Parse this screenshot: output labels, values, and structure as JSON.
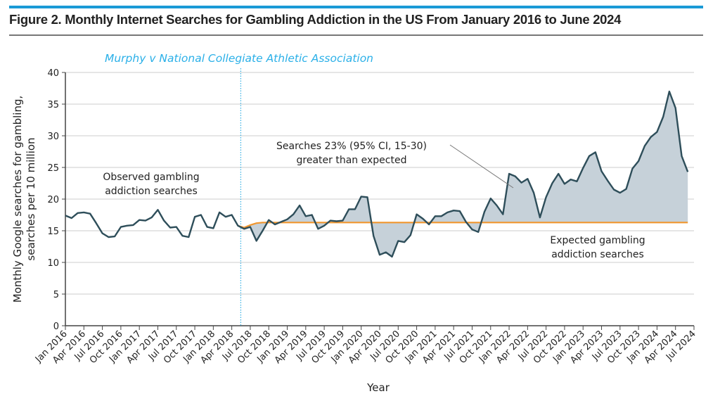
{
  "figure": {
    "title": "Figure 2. Monthly Internet Searches for Gambling Addiction in the US From January 2016 to June 2024"
  },
  "colors": {
    "accent_bar": "#1a9ad6",
    "observed_line": "#2e4e5a",
    "expected_line": "#f0962e",
    "fill": "#c6d1d9",
    "event_line": "#3fb4e6"
  },
  "chart_data": {
    "type": "line",
    "title": "Figure 2. Monthly Internet Searches for Gambling Addiction in the US From January 2016 to June 2024",
    "xlabel": "Year",
    "ylabel": [
      "Monthly Google searches for gambling,",
      "searches per 10 million"
    ],
    "ylim": [
      0,
      40
    ],
    "yticks": [
      "0",
      "5",
      "10",
      "15",
      "20",
      "25",
      "30",
      "35",
      "40"
    ],
    "grid": "horizontal",
    "xticks": [
      "Jan 2016",
      "Apr 2016",
      "Jul 2016",
      "Oct 2016",
      "Jan 2017",
      "Apr 2017",
      "Jul 2017",
      "Oct 2017",
      "Jan 2018",
      "Apr 2018",
      "Jul 2018",
      "Oct 2018",
      "Jan 2019",
      "Apr 2019",
      "Jul 2019",
      "Oct 2019",
      "Jan 2020",
      "Apr 2020",
      "Jul 2020",
      "Oct 2020",
      "Jan 2021",
      "Apr 2021",
      "Jul 2021",
      "Oct 2021",
      "Jan 2022",
      "Apr 2022",
      "Jul 2022",
      "Oct 2022",
      "Jan 2023",
      "Apr 2023",
      "Jul 2023",
      "Oct 2023",
      "Jan 2024",
      "Apr 2024",
      "Jul 2024"
    ],
    "x_start": "Jan 2016",
    "x_end": "Jun 2024",
    "event": {
      "label": "Murphy v National Collegiate Athletic Association",
      "date": "May 2018"
    },
    "series": [
      {
        "name": "Observed gambling addiction searches",
        "start": "Jan 2016",
        "values": [
          17.4,
          17.0,
          17.8,
          17.9,
          17.7,
          16.2,
          14.6,
          14.0,
          14.1,
          15.6,
          15.8,
          15.9,
          16.7,
          16.6,
          17.1,
          18.3,
          16.6,
          15.5,
          15.6,
          14.2,
          14.0,
          17.2,
          17.5,
          15.6,
          15.4,
          17.9,
          17.2,
          17.5,
          15.8,
          15.3,
          15.6,
          13.4,
          15.0,
          16.7,
          16.0,
          16.4,
          16.8,
          17.6,
          19.0,
          17.3,
          17.5,
          15.3,
          15.8,
          16.6,
          16.5,
          16.6,
          18.4,
          18.4,
          20.4,
          20.3,
          14.2,
          11.2,
          11.6,
          10.9,
          13.4,
          13.2,
          14.3,
          17.6,
          16.9,
          16.0,
          17.3,
          17.3,
          17.9,
          18.2,
          18.1,
          16.4,
          15.2,
          14.8,
          18.0,
          20.1,
          19.0,
          17.6,
          24.0,
          23.6,
          22.6,
          23.2,
          21.0,
          17.1,
          20.3,
          22.5,
          24.0,
          22.4,
          23.1,
          22.8,
          24.9,
          26.8,
          27.4,
          24.4,
          22.9,
          21.5,
          21.0,
          21.6,
          24.8,
          26.0,
          28.4,
          29.8,
          30.6,
          33.0,
          37.0,
          34.4,
          26.8,
          24.3
        ]
      },
      {
        "name": "Expected gambling addiction searches",
        "start": "May 2018",
        "values": [
          15.8,
          15.5,
          15.9,
          16.2,
          16.3,
          16.3
        ]
      }
    ],
    "annotations": {
      "observed": [
        "Observed gambling",
        "addiction searches"
      ],
      "expected": [
        "Expected gambling",
        "addiction searches"
      ],
      "excess": [
        "Searches 23% (95% CI, 15-30)",
        "greater than expected"
      ]
    }
  }
}
